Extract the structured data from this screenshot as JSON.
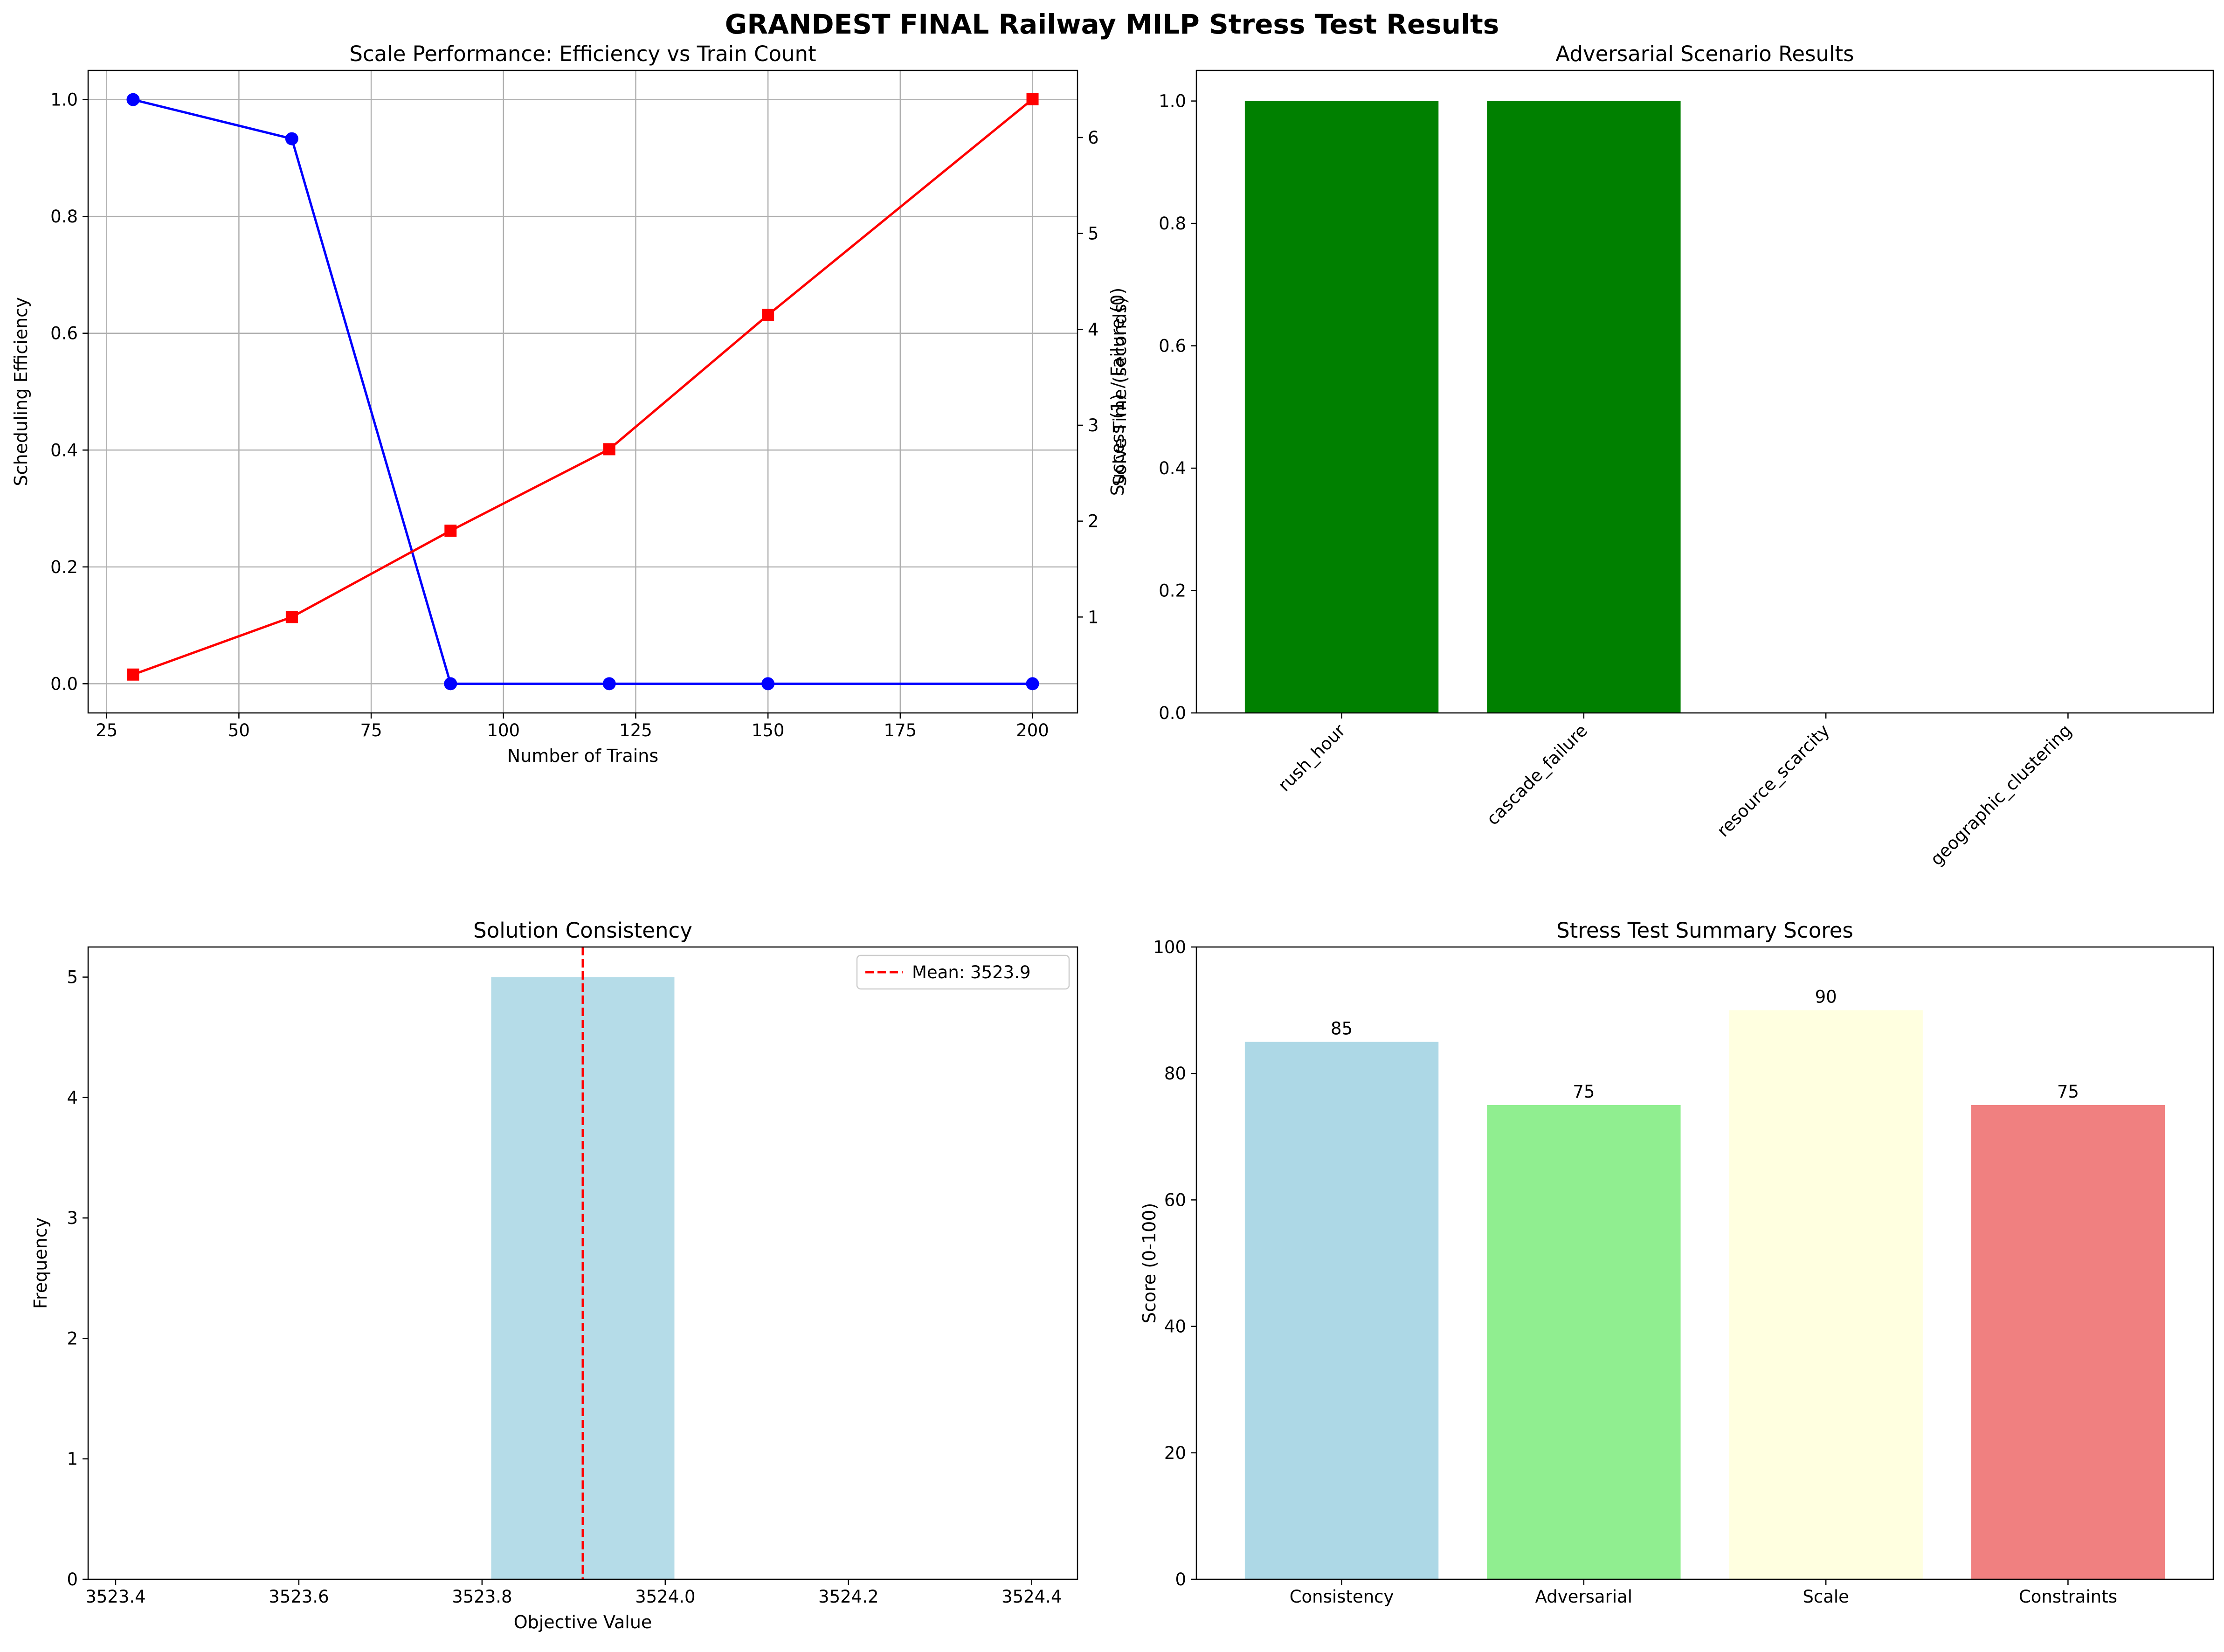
{
  "figure_title": "GRANDEST FINAL Railway MILP Stress Test Results",
  "colors": {
    "efficiency_line": "#0000ff",
    "solve_time_line": "#ff0000",
    "success_bar": "#008000",
    "hist_bar": "#add8e6",
    "mean_line": "#ff0000",
    "grid": "#b0b0b0",
    "summary_bars": [
      "#add8e6",
      "#90ee90",
      "#ffffe0",
      "#f08080"
    ]
  },
  "chart_data": [
    {
      "type": "line",
      "title": "Scale Performance: Efficiency vs Train Count",
      "xlabel": "Number of Trains",
      "ylabel": "Scheduling Efficiency",
      "y2label": "Solve Time (seconds)",
      "x": [
        30,
        60,
        90,
        120,
        150,
        200
      ],
      "series": [
        {
          "axis": "left",
          "marker": "circle",
          "color": "#0000ff",
          "values": [
            1.0,
            0.933,
            0.0,
            0.0,
            0.0,
            0.0
          ]
        },
        {
          "axis": "right",
          "marker": "square",
          "color": "#ff0000",
          "values": [
            0.4,
            1.0,
            1.9,
            2.75,
            4.15,
            6.4
          ]
        }
      ],
      "xlim": [
        21.5,
        208.5
      ],
      "ylim": [
        -0.05,
        1.05
      ],
      "y2lim": [
        0.0,
        6.7
      ],
      "xticks": [
        25,
        50,
        75,
        100,
        125,
        150,
        175,
        200
      ],
      "yticks": [
        0.0,
        0.2,
        0.4,
        0.6,
        0.8,
        1.0
      ],
      "y2ticks": [
        1,
        2,
        3,
        4,
        5,
        6
      ],
      "grid": true
    },
    {
      "type": "bar",
      "title": "Adversarial Scenario Results",
      "xlabel": "",
      "ylabel": "Success (1) / Failure (0)",
      "categories": [
        "rush_hour",
        "cascade_failure",
        "resource_scarcity",
        "geographic_clustering"
      ],
      "values": [
        1,
        1,
        0,
        0
      ],
      "ylim": [
        0,
        1.05
      ],
      "yticks": [
        0.0,
        0.2,
        0.4,
        0.6,
        0.8,
        1.0
      ]
    },
    {
      "type": "histogram",
      "title": "Solution Consistency",
      "xlabel": "Objective Value",
      "ylabel": "Frequency",
      "bins": [
        {
          "start": 3523.81,
          "end": 3524.01,
          "count": 5
        }
      ],
      "mean": 3523.91,
      "legend": [
        "Mean: 3523.9"
      ],
      "legend_position": "top-right",
      "xlim": [
        3523.37,
        3524.45
      ],
      "ylim": [
        0,
        5.25
      ],
      "xticks": [
        3523.4,
        3523.6,
        3523.8,
        3524.0,
        3524.2,
        3524.4
      ],
      "yticks": [
        0,
        1,
        2,
        3,
        4,
        5
      ]
    },
    {
      "type": "bar",
      "title": "Stress Test Summary Scores",
      "xlabel": "",
      "ylabel": "Score (0-100)",
      "categories": [
        "Consistency",
        "Adversarial",
        "Scale",
        "Constraints"
      ],
      "values": [
        85,
        75,
        90,
        75
      ],
      "ylim": [
        0,
        100
      ],
      "yticks": [
        0,
        20,
        40,
        60,
        80,
        100
      ]
    }
  ]
}
